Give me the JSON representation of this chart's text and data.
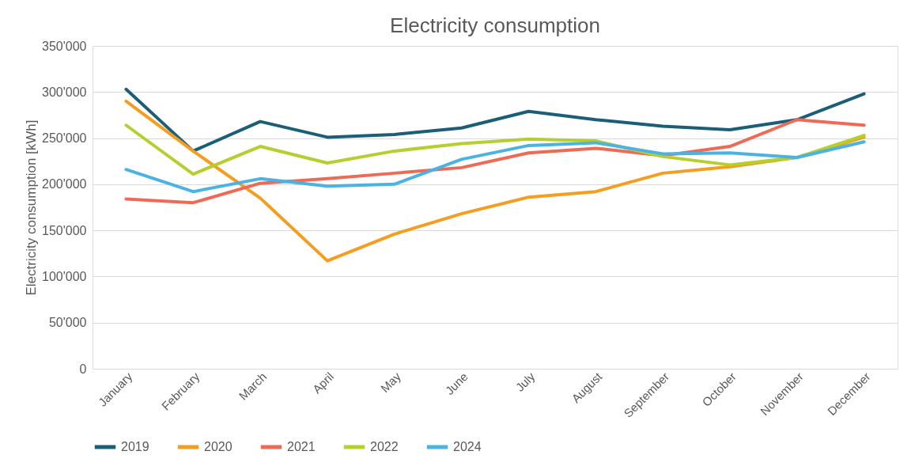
{
  "chart_data": {
    "type": "line",
    "title": "Electricity consumption",
    "ylabel": "Electricity consumption [kWh]",
    "categories": [
      "January",
      "February",
      "March",
      "April",
      "May",
      "June",
      "July",
      "August",
      "September",
      "October",
      "November",
      "December"
    ],
    "series": [
      {
        "name": "2019",
        "color": "#1b5e78",
        "values": [
          303000,
          236000,
          268000,
          251000,
          254000,
          261000,
          279000,
          270000,
          263000,
          259000,
          270000,
          298000
        ]
      },
      {
        "name": "2020",
        "color": "#f59d1e",
        "values": [
          290000,
          236000,
          185000,
          117000,
          146000,
          168000,
          186000,
          192000,
          212000,
          219000,
          229000,
          251000
        ]
      },
      {
        "name": "2021",
        "color": "#ef6a55",
        "values": [
          184000,
          180000,
          201000,
          206000,
          212000,
          218000,
          234000,
          239000,
          231000,
          241000,
          270000,
          264000
        ]
      },
      {
        "name": "2022",
        "color": "#b5cf2e",
        "values": [
          264000,
          211000,
          241000,
          223000,
          236000,
          244000,
          249000,
          247000,
          230000,
          221000,
          229000,
          253000
        ]
      },
      {
        "name": "2024",
        "color": "#4bb3e3",
        "values": [
          216000,
          192000,
          206000,
          198000,
          200000,
          227000,
          242000,
          245000,
          233000,
          234000,
          229000,
          246000
        ]
      }
    ],
    "ylim": [
      0,
      350000
    ],
    "yticks": [
      0,
      {
        "value": 50000,
        "label": "50'000"
      },
      {
        "value": 100000,
        "label": "100'000"
      },
      {
        "value": 150000,
        "label": "150'000"
      },
      {
        "value": 200000,
        "label": "200'000"
      },
      {
        "value": 250000,
        "label": "250'000"
      },
      {
        "value": 300000,
        "label": "300'000"
      },
      {
        "value": 350000,
        "label": "350'000"
      }
    ],
    "grid": "y",
    "legend": "bottom",
    "marker": "none",
    "line_style": "solid"
  }
}
